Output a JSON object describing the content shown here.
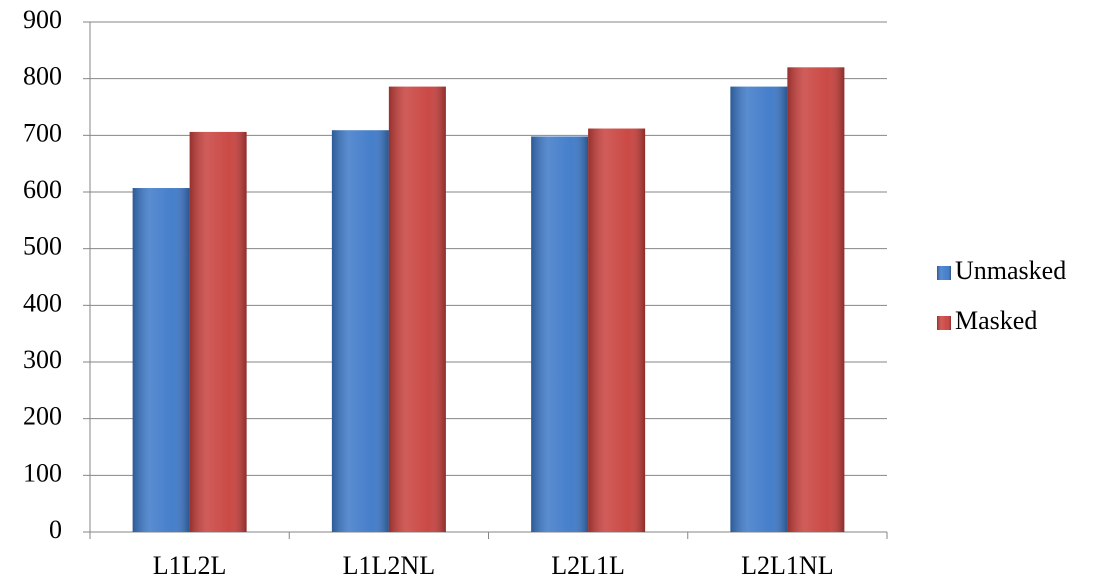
{
  "chart_data": {
    "type": "bar",
    "categories": [
      "L1L2L",
      "L1L2NL",
      "L2L1L",
      "L2L1NL"
    ],
    "series": [
      {
        "name": "Unmasked",
        "color": "#3c78c8",
        "values": [
          607,
          709,
          698,
          786
        ]
      },
      {
        "name": "Masked",
        "color": "#c8403c",
        "values": [
          706,
          786,
          712,
          820
        ]
      }
    ],
    "ylim": [
      0,
      900
    ],
    "yticks": [
      0,
      100,
      200,
      300,
      400,
      500,
      600,
      700,
      800,
      900
    ],
    "grid": true,
    "legend": "right"
  }
}
